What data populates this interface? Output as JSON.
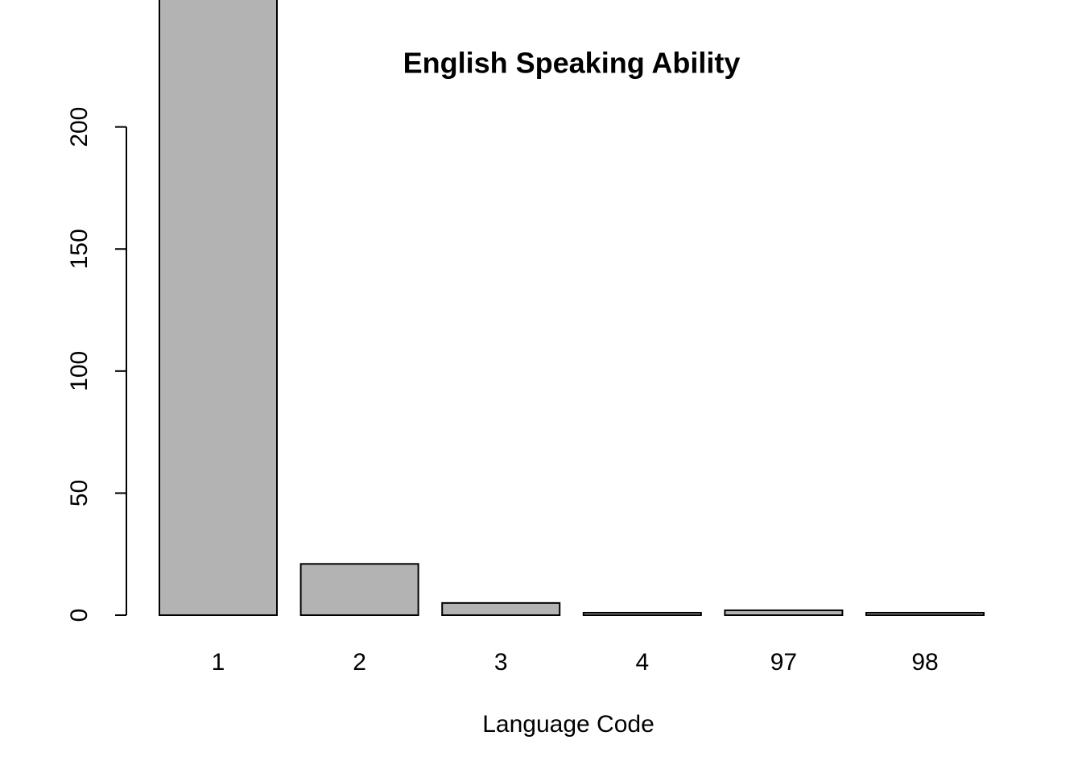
{
  "chart_data": {
    "type": "bar",
    "title": "English Speaking Ability",
    "x_label": "Language Code",
    "categories": [
      "1",
      "2",
      "3",
      "4",
      "97",
      "98"
    ],
    "values": [
      270,
      21,
      5,
      1,
      2,
      1
    ],
    "color": "#b3b3b3",
    "ylim": [
      0,
      252
    ],
    "yticks": [
      0,
      50,
      100,
      150,
      200
    ],
    "grid": false
  }
}
